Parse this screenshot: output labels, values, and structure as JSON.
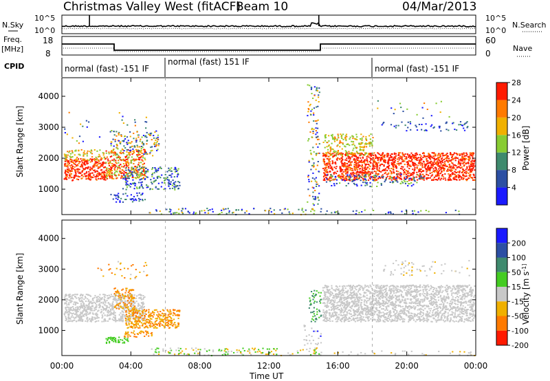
{
  "header": {
    "station": "Christmas Valley West (fitACF)",
    "beam": "Beam 10",
    "date": "04/Mar/2013"
  },
  "noise_panel": {
    "left_label": "N.Sky",
    "right_label": "N.Search",
    "tick_top": "10^5",
    "tick_bottom": "10^0"
  },
  "freq_panel": {
    "left_label_1": "Freq.",
    "left_label_2": "[MHz]",
    "right_label": "Nave",
    "left_tick_top": "18",
    "left_tick_bottom": "8",
    "right_tick_top": "60",
    "right_tick_bottom": "0"
  },
  "cpid": {
    "label": "CPID",
    "segments": [
      "normal (fast) -151 IF",
      "normal (fast) 151 IF",
      "normal (fast) -151 IF"
    ]
  },
  "chart_data": [
    {
      "type": "heatmap",
      "name": "power",
      "ylabel": "Slant Range [km]",
      "ylim": [
        180,
        4600
      ],
      "yticks": [
        "1000",
        "2000",
        "3000",
        "4000"
      ],
      "colorbar_label": "Power [dB]",
      "colorbar_ticks": [
        "4",
        "8",
        "12",
        "16",
        "20",
        "24",
        "28"
      ],
      "colors": [
        "#1a1aff",
        "#2c4fa3",
        "#3f8a6e",
        "#88cc33",
        "#f0b000",
        "#ff7a00",
        "#ff1a00"
      ]
    },
    {
      "type": "heatmap",
      "name": "velocity",
      "ylabel": "Slant Range [km]",
      "ylim": [
        180,
        4600
      ],
      "yticks": [
        "1000",
        "2000",
        "3000",
        "4000"
      ],
      "colorbar_label": "Velocity [m s^-1]",
      "colorbar_ticks": [
        "200",
        "100",
        "50",
        "15",
        "-15",
        "-50",
        "-100",
        "-200"
      ],
      "colors": [
        "#1a1aff",
        "#2c4fa3",
        "#3f8a6e",
        "#44cc22",
        "#c8c8c8",
        "#f0b000",
        "#ff7a00",
        "#ff1a00"
      ]
    }
  ],
  "xaxis": {
    "label": "Time UT",
    "ticks": [
      "00:00",
      "04:00",
      "08:00",
      "12:00",
      "16:00",
      "20:00",
      "00:00"
    ]
  }
}
